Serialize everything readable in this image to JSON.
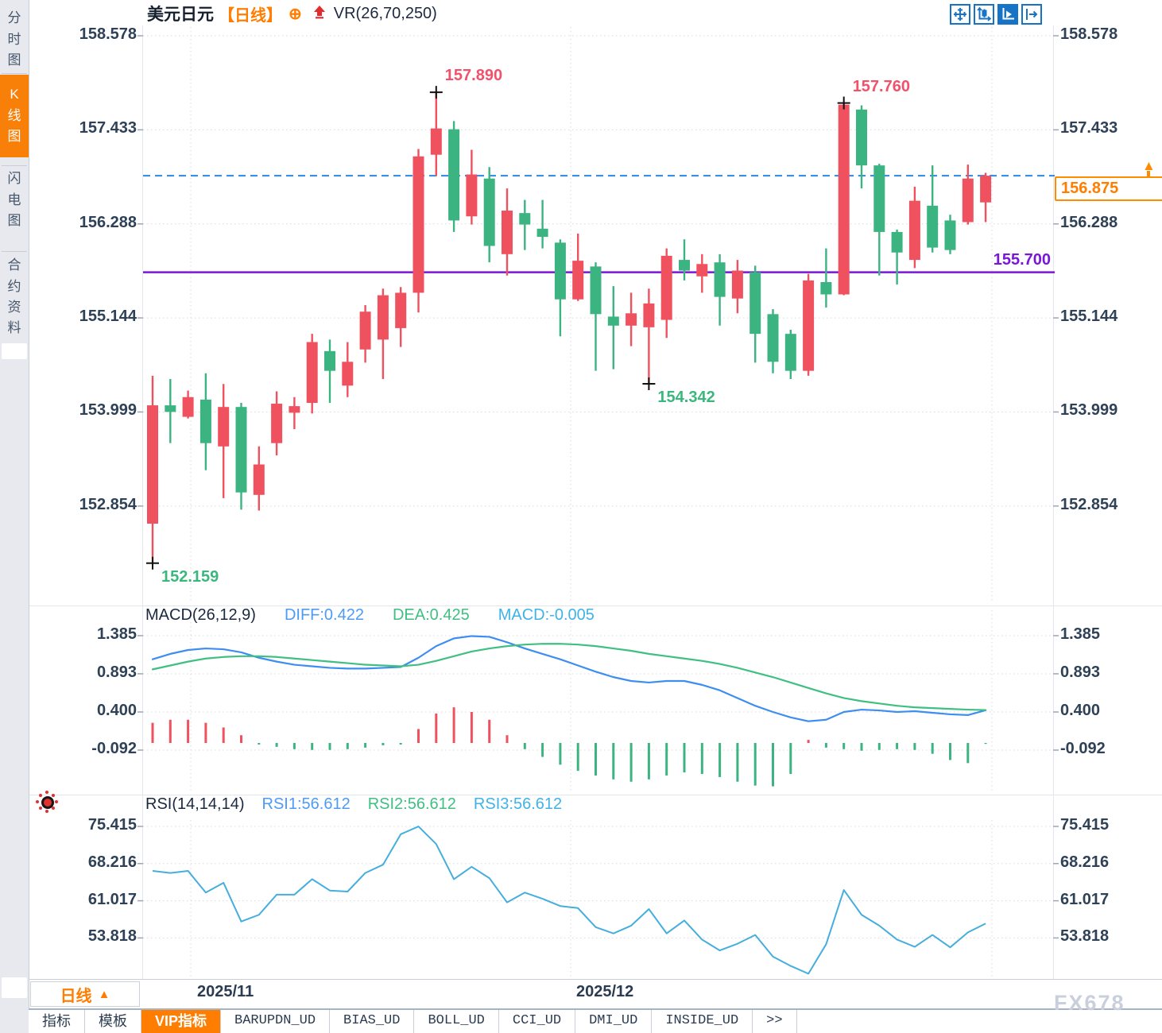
{
  "header": {
    "symbol": "美元日元",
    "period_tag": "【日线】",
    "indicator": "VR(26,70,250)",
    "accent_color": "#ff7d00",
    "toolbar_icons": [
      "crosshair-move-icon",
      "axis-candle-icon",
      "axis-play-icon",
      "axis-exit-icon"
    ]
  },
  "sidebar": {
    "items": [
      {
        "label": "分时图",
        "active": false
      },
      {
        "label": "K线图",
        "active": true
      },
      {
        "label": "闪电图",
        "active": false
      },
      {
        "label": "合约资料",
        "active": false
      }
    ]
  },
  "bottom": {
    "period_button_label": "日线",
    "watermark": "FX678",
    "tabs": [
      {
        "label": "指标",
        "active": false,
        "mono": false
      },
      {
        "label": "模板",
        "active": false,
        "mono": false
      },
      {
        "label": "VIP指标",
        "active": true,
        "mono": false
      },
      {
        "label": "BARUPDN_UD",
        "active": false,
        "mono": true
      },
      {
        "label": "BIAS_UD",
        "active": false,
        "mono": true
      },
      {
        "label": "BOLL_UD",
        "active": false,
        "mono": true
      },
      {
        "label": "CCI_UD",
        "active": false,
        "mono": true
      },
      {
        "label": "DMI_UD",
        "active": false,
        "mono": true
      },
      {
        "label": "INSIDE_UD",
        "active": false,
        "mono": true
      },
      {
        "label": ">>",
        "active": false,
        "mono": true
      }
    ]
  },
  "chart_data": [
    {
      "type": "candlestick",
      "title": "美元日元 日线",
      "up_color": "#f0515f",
      "down_color": "#3cb482",
      "ylim": [
        152.159,
        158.578
      ],
      "y_ticks": [
        "158.578",
        "157.433",
        "156.288",
        "155.144",
        "153.999",
        "152.854"
      ],
      "x_ticks": [
        "2025/11",
        "2025/12"
      ],
      "grid": true,
      "candles": [
        [
          152.64,
          154.44,
          152.159,
          154.08
        ],
        [
          154.08,
          154.4,
          153.62,
          154.0
        ],
        [
          153.94,
          154.26,
          153.92,
          154.18
        ],
        [
          154.15,
          154.47,
          153.29,
          153.62
        ],
        [
          153.58,
          154.34,
          152.95,
          154.06
        ],
        [
          154.06,
          154.11,
          152.81,
          153.02
        ],
        [
          152.99,
          153.58,
          152.8,
          153.36
        ],
        [
          153.62,
          154.25,
          153.47,
          154.1
        ],
        [
          153.99,
          154.18,
          153.79,
          154.07
        ],
        [
          154.11,
          154.95,
          153.98,
          154.85
        ],
        [
          154.74,
          154.88,
          154.11,
          154.5
        ],
        [
          154.32,
          154.85,
          154.18,
          154.61
        ],
        [
          154.76,
          155.3,
          154.6,
          155.22
        ],
        [
          154.88,
          155.5,
          154.4,
          155.42
        ],
        [
          155.02,
          155.52,
          154.79,
          155.45
        ],
        [
          155.45,
          157.2,
          155.21,
          157.11
        ],
        [
          157.13,
          157.89,
          156.87,
          157.45
        ],
        [
          157.44,
          157.54,
          156.19,
          156.33
        ],
        [
          156.38,
          157.19,
          156.28,
          156.89
        ],
        [
          156.84,
          156.98,
          155.82,
          156.02
        ],
        [
          155.92,
          156.72,
          155.66,
          156.45
        ],
        [
          156.42,
          156.58,
          155.97,
          156.28
        ],
        [
          156.23,
          156.58,
          155.99,
          156.13
        ],
        [
          156.06,
          156.1,
          154.92,
          155.37
        ],
        [
          155.37,
          156.17,
          155.35,
          155.84
        ],
        [
          155.77,
          155.82,
          154.5,
          155.19
        ],
        [
          155.16,
          155.53,
          154.52,
          155.05
        ],
        [
          155.05,
          155.45,
          154.8,
          155.2
        ],
        [
          155.03,
          155.5,
          154.342,
          155.32
        ],
        [
          155.12,
          155.99,
          154.9,
          155.9
        ],
        [
          155.85,
          156.1,
          155.6,
          155.72
        ],
        [
          155.65,
          155.92,
          155.45,
          155.8
        ],
        [
          155.82,
          155.92,
          155.05,
          155.4
        ],
        [
          155.38,
          155.85,
          155.2,
          155.72
        ],
        [
          155.7,
          155.78,
          154.6,
          154.95
        ],
        [
          155.19,
          155.25,
          154.47,
          154.61
        ],
        [
          154.95,
          155.0,
          154.4,
          154.5
        ],
        [
          154.5,
          155.68,
          154.44,
          155.6
        ],
        [
          155.58,
          155.99,
          155.27,
          155.43
        ],
        [
          155.43,
          157.76,
          155.42,
          157.74
        ],
        [
          157.68,
          157.73,
          156.72,
          157.0
        ],
        [
          157.0,
          157.02,
          155.66,
          156.19
        ],
        [
          156.19,
          156.22,
          155.55,
          155.94
        ],
        [
          155.85,
          156.74,
          155.75,
          156.57
        ],
        [
          156.51,
          157.0,
          155.94,
          156.0
        ],
        [
          156.33,
          156.4,
          155.92,
          155.97
        ],
        [
          156.31,
          157.01,
          156.28,
          156.84
        ],
        [
          156.55,
          156.91,
          156.31,
          156.875
        ]
      ],
      "annotations": [
        {
          "text": "157.890",
          "type": "high",
          "index": 16,
          "price": 157.89,
          "color": "#f25269"
        },
        {
          "text": "157.760",
          "type": "high",
          "index": 39,
          "price": 157.76,
          "color": "#f25269"
        },
        {
          "text": "152.159",
          "type": "low",
          "index": 0,
          "price": 152.159,
          "color": "#3bb77d"
        },
        {
          "text": "154.342",
          "type": "low",
          "index": 28,
          "price": 154.342,
          "color": "#3bb77d"
        }
      ],
      "hlines": [
        {
          "label": "156.875",
          "price": 156.875,
          "style": "dashed",
          "color": "#2b87e4"
        },
        {
          "label": "155.700",
          "price": 155.7,
          "style": "solid",
          "color": "#7a16d8"
        }
      ]
    },
    {
      "type": "bar",
      "title": "MACD",
      "header": {
        "name": "MACD(26,12,9)",
        "diff": "DIFF:0.422",
        "dea": "DEA:0.425",
        "macd": "MACD:-0.005"
      },
      "y_ticks": [
        "1.385",
        "0.893",
        "0.400",
        "-0.092"
      ],
      "histogram": [
        0.26,
        0.3,
        0.3,
        0.26,
        0.2,
        0.1,
        -0.02,
        -0.05,
        -0.08,
        -0.09,
        -0.09,
        -0.08,
        -0.06,
        -0.03,
        -0.02,
        0.18,
        0.38,
        0.46,
        0.4,
        0.3,
        0.1,
        -0.08,
        -0.18,
        -0.28,
        -0.36,
        -0.42,
        -0.47,
        -0.5,
        -0.47,
        -0.42,
        -0.38,
        -0.4,
        -0.44,
        -0.5,
        -0.55,
        -0.56,
        -0.4,
        0.04,
        -0.06,
        -0.08,
        -0.1,
        -0.09,
        -0.08,
        -0.09,
        -0.14,
        -0.22,
        -0.26,
        -0.005
      ],
      "series": [
        {
          "name": "DIFF",
          "color": "#3d8ef0",
          "values": [
            1.08,
            1.15,
            1.2,
            1.22,
            1.21,
            1.17,
            1.1,
            1.05,
            1.01,
            0.99,
            0.97,
            0.96,
            0.96,
            0.97,
            0.98,
            1.1,
            1.25,
            1.35,
            1.38,
            1.37,
            1.3,
            1.22,
            1.15,
            1.08,
            1.0,
            0.92,
            0.85,
            0.8,
            0.78,
            0.8,
            0.8,
            0.75,
            0.68,
            0.58,
            0.48,
            0.4,
            0.33,
            0.28,
            0.3,
            0.4,
            0.43,
            0.42,
            0.4,
            0.41,
            0.39,
            0.37,
            0.36,
            0.422
          ]
        },
        {
          "name": "DEA",
          "color": "#3fbf82",
          "values": [
            0.95,
            1.0,
            1.05,
            1.09,
            1.11,
            1.12,
            1.12,
            1.11,
            1.09,
            1.07,
            1.05,
            1.03,
            1.01,
            1.0,
            0.99,
            1.01,
            1.06,
            1.12,
            1.18,
            1.22,
            1.25,
            1.27,
            1.28,
            1.28,
            1.27,
            1.25,
            1.22,
            1.19,
            1.15,
            1.12,
            1.09,
            1.06,
            1.02,
            0.97,
            0.91,
            0.85,
            0.78,
            0.71,
            0.64,
            0.58,
            0.54,
            0.51,
            0.48,
            0.46,
            0.45,
            0.44,
            0.43,
            0.425
          ]
        }
      ]
    },
    {
      "type": "line",
      "title": "RSI",
      "header": {
        "name": "RSI(14,14,14)",
        "rsi1": "RSI1:56.612",
        "rsi2": "RSI2:56.612",
        "rsi3": "RSI3:56.612"
      },
      "y_ticks": [
        "75.415",
        "68.216",
        "61.017",
        "53.818"
      ],
      "series": [
        {
          "name": "RSI1",
          "color": "#45aedd",
          "values": [
            66.8,
            66.4,
            66.8,
            62.6,
            64.5,
            57.0,
            58.3,
            62.2,
            62.2,
            65.2,
            63.0,
            62.8,
            66.4,
            68.0,
            73.9,
            75.4,
            72.0,
            65.2,
            67.6,
            65.4,
            60.7,
            62.6,
            61.4,
            60.0,
            59.6,
            55.9,
            54.7,
            56.2,
            59.4,
            54.7,
            57.2,
            53.5,
            51.4,
            52.7,
            54.4,
            50.2,
            48.4,
            46.9,
            52.6,
            63.1,
            58.3,
            56.2,
            53.5,
            52.1,
            54.4,
            52.0,
            54.9,
            56.612
          ]
        }
      ]
    }
  ]
}
